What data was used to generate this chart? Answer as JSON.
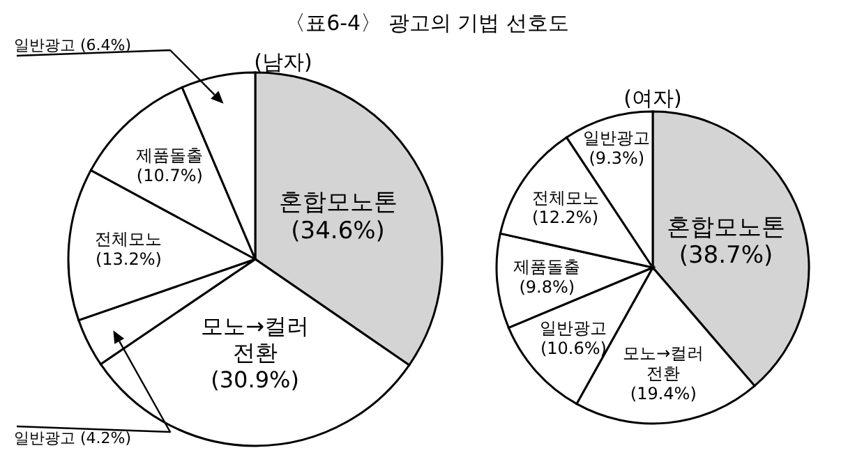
{
  "chart_data": [
    {
      "type": "pie",
      "title": "〈표6-4〉 광고의 기법 선호도",
      "subtitle": "(남자)",
      "categories": [
        "혼합모노톤",
        "모노→컬러 전환",
        "일반광고",
        "전체모노",
        "제품돌출",
        "일반광고"
      ],
      "values": [
        34.6,
        30.9,
        4.2,
        13.2,
        10.7,
        6.4
      ],
      "value_labels": [
        "(34.6%)",
        "(30.9%)",
        "(4.2%)",
        "(13.2%)",
        "(10.7%)",
        "(6.4%)"
      ],
      "colors": [
        "#d4d4d4",
        "#ffffff",
        "#ffffff",
        "#ffffff",
        "#ffffff",
        "#ffffff"
      ]
    },
    {
      "type": "pie",
      "subtitle": "(여자)",
      "categories": [
        "혼합모노톤",
        "모노→컬러 전환",
        "일반광고",
        "제품돌출",
        "전체모노",
        "일반광고"
      ],
      "values": [
        38.7,
        19.4,
        10.6,
        9.8,
        12.2,
        9.3
      ],
      "value_labels": [
        "(38.7%)",
        "(19.4%)",
        "(10.6%)",
        "(9.8%)",
        "(12.2%)",
        "(9.3%)"
      ],
      "colors": [
        "#d4d4d4",
        "#ffffff",
        "#ffffff",
        "#ffffff",
        "#ffffff",
        "#ffffff"
      ]
    }
  ]
}
